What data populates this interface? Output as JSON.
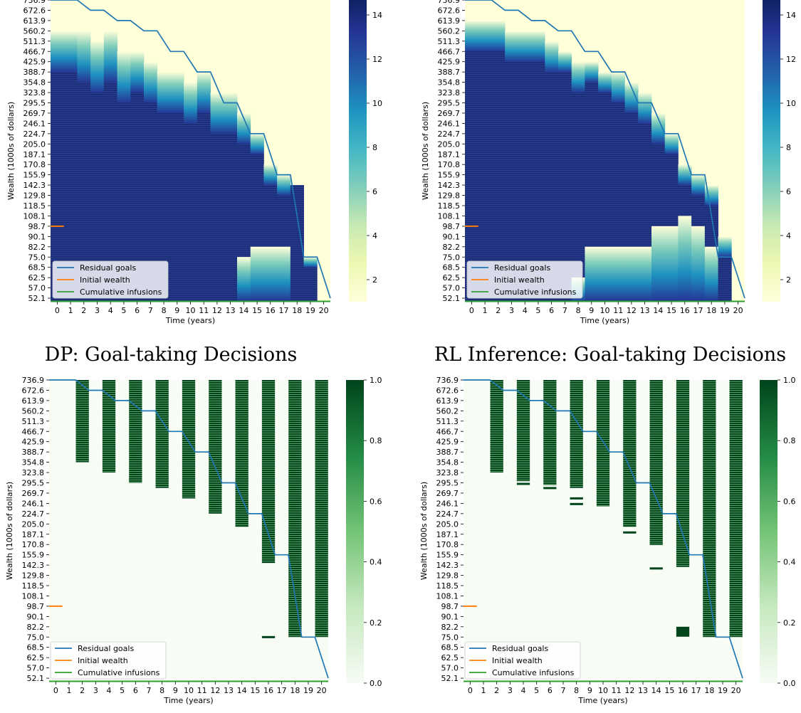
{
  "chart_data": [
    {
      "id": "dp-investment",
      "type": "heatmap",
      "title": "",
      "xlabel": "Time (years)",
      "ylabel": "Wealth (1000s of dollars)",
      "x_ticks": [
        "0",
        "1",
        "2",
        "3",
        "4",
        "5",
        "6",
        "7",
        "8",
        "9",
        "10",
        "11",
        "12",
        "13",
        "14",
        "15",
        "16",
        "17",
        "18",
        "19",
        "20"
      ],
      "y_ticks": [
        "736.9",
        "672.6",
        "613.9",
        "560.2",
        "511.3",
        "466.7",
        "425.9",
        "388.7",
        "354.8",
        "323.8",
        "295.5",
        "269.7",
        "246.1",
        "224.7",
        "205.0",
        "187.1",
        "170.8",
        "155.9",
        "142.3",
        "129.8",
        "118.5",
        "108.1",
        "98.7",
        "90.1",
        "82.2",
        "75.0",
        "68.5",
        "62.5",
        "57.0",
        "52.1"
      ],
      "colormap": "YlGnBu",
      "colorbar": {
        "min": 1,
        "max": 15,
        "ticks": [
          "2",
          "4",
          "6",
          "8",
          "10",
          "12",
          "14"
        ]
      },
      "dark_top_wealth": [
        388.7,
        388.7,
        354.8,
        323.8,
        354.8,
        295.5,
        323.8,
        295.5,
        269.7,
        269.7,
        246.1,
        269.7,
        224.7,
        224.7,
        205.0,
        187.1,
        142.3,
        129.8,
        142.3,
        68.5
      ],
      "fade_top_wealth": [
        560.2,
        560.2,
        560.2,
        511.3,
        560.2,
        466.7,
        466.7,
        425.9,
        388.7,
        388.7,
        354.8,
        388.7,
        323.8,
        323.8,
        269.7,
        224.7,
        170.8,
        155.9,
        142.3,
        75.0
      ],
      "lower_band_top_wealth": [
        null,
        null,
        null,
        null,
        null,
        null,
        null,
        null,
        null,
        null,
        null,
        null,
        null,
        null,
        75.0,
        82.2,
        82.2,
        82.2,
        null,
        null
      ],
      "residual_goals": [
        736.9,
        736.9,
        736.9,
        672.6,
        672.6,
        613.9,
        613.9,
        560.2,
        560.2,
        466.7,
        466.7,
        388.7,
        388.7,
        295.5,
        295.5,
        224.7,
        224.7,
        155.9,
        155.9,
        75.0,
        75.0,
        52.1
      ],
      "initial_wealth": 98.7,
      "cumulative_infusions": 52.1,
      "legend": [
        "Residual goals",
        "Initial wealth",
        "Cumulative infusions"
      ]
    },
    {
      "id": "rl-investment",
      "type": "heatmap",
      "title": "",
      "xlabel": "Time (years)",
      "ylabel": "Wealth (1000s of dollars)",
      "x_ticks": [
        "0",
        "1",
        "2",
        "3",
        "4",
        "5",
        "6",
        "7",
        "8",
        "9",
        "10",
        "11",
        "12",
        "13",
        "14",
        "15",
        "16",
        "17",
        "18",
        "19",
        "20"
      ],
      "y_ticks": [
        "736.9",
        "672.6",
        "613.9",
        "560.2",
        "511.3",
        "466.7",
        "425.9",
        "388.7",
        "354.8",
        "323.8",
        "295.5",
        "269.7",
        "246.1",
        "224.7",
        "205.0",
        "187.1",
        "170.8",
        "155.9",
        "142.3",
        "129.8",
        "118.5",
        "108.1",
        "98.7",
        "90.1",
        "82.2",
        "75.0",
        "68.5",
        "62.5",
        "57.0",
        "52.1"
      ],
      "colormap": "YlGnBu",
      "colorbar": {
        "min": 1,
        "max": 15,
        "ticks": [
          "2",
          "4",
          "6",
          "8",
          "10",
          "12",
          "14"
        ]
      },
      "dark_top_wealth": [
        466.7,
        466.7,
        466.7,
        425.9,
        425.9,
        425.9,
        388.7,
        388.7,
        323.8,
        354.8,
        323.8,
        295.5,
        269.7,
        246.1,
        205.0,
        187.1,
        142.3,
        129.8,
        118.5,
        75.0
      ],
      "fade_top_wealth": [
        613.9,
        613.9,
        613.9,
        560.2,
        560.2,
        560.2,
        511.3,
        466.7,
        425.9,
        425.9,
        388.7,
        388.7,
        354.8,
        323.8,
        269.7,
        224.7,
        170.8,
        155.9,
        142.3,
        90.1
      ],
      "lower_band_top_wealth": [
        null,
        null,
        null,
        null,
        null,
        null,
        null,
        null,
        62.5,
        82.2,
        82.2,
        82.2,
        82.2,
        82.2,
        98.7,
        98.7,
        108.1,
        98.7,
        82.2,
        null
      ],
      "residual_goals": [
        736.9,
        736.9,
        736.9,
        672.6,
        672.6,
        613.9,
        613.9,
        560.2,
        560.2,
        466.7,
        466.7,
        388.7,
        388.7,
        295.5,
        295.5,
        224.7,
        224.7,
        155.9,
        155.9,
        75.0,
        75.0,
        52.1
      ],
      "initial_wealth": 98.7,
      "cumulative_infusions": 52.1,
      "legend": [
        "Residual goals",
        "Initial wealth",
        "Cumulative infusions"
      ]
    },
    {
      "id": "dp-goal-taking",
      "type": "heatmap",
      "title": "DP: Goal-taking Decisions",
      "xlabel": "Time (years)",
      "ylabel": "Wealth (1000s of dollars)",
      "x_ticks": [
        "0",
        "1",
        "2",
        "3",
        "4",
        "5",
        "6",
        "7",
        "8",
        "9",
        "10",
        "11",
        "12",
        "13",
        "14",
        "15",
        "16",
        "17",
        "18",
        "19",
        "20"
      ],
      "y_ticks": [
        "736.9",
        "672.6",
        "613.9",
        "560.2",
        "511.3",
        "466.7",
        "425.9",
        "388.7",
        "354.8",
        "323.8",
        "295.5",
        "269.7",
        "246.1",
        "224.7",
        "205.0",
        "187.1",
        "170.8",
        "155.9",
        "142.3",
        "129.8",
        "118.5",
        "108.1",
        "98.7",
        "90.1",
        "82.2",
        "75.0",
        "68.5",
        "62.5",
        "57.0",
        "52.1"
      ],
      "colormap": "Greens",
      "colorbar": {
        "min": 0,
        "max": 1,
        "ticks": [
          "0.0",
          "0.2",
          "0.4",
          "0.6",
          "0.8",
          "1.0"
        ]
      },
      "goal_taken_min_wealth": {
        "2": 354.8,
        "4": 323.8,
        "6": 295.5,
        "8": 282.6,
        "10": 257.4,
        "12": 224.7,
        "14": 200.0,
        "16": 145.0,
        "18": 75.0,
        "20": 75.0
      },
      "extra_marks": [
        {
          "t": 16,
          "wealth": 75.7
        }
      ],
      "residual_goals": [
        736.9,
        736.9,
        736.9,
        672.6,
        672.6,
        613.9,
        613.9,
        560.2,
        560.2,
        466.7,
        466.7,
        388.7,
        388.7,
        295.5,
        295.5,
        224.7,
        224.7,
        155.9,
        155.9,
        75.0,
        75.0,
        52.1
      ],
      "initial_wealth": 98.7,
      "cumulative_infusions": 52.1,
      "legend": [
        "Residual goals",
        "Initial wealth",
        "Cumulative infusions"
      ]
    },
    {
      "id": "rl-goal-taking",
      "type": "heatmap",
      "title": "RL Inference: Goal-taking Decisions",
      "xlabel": "Time (years)",
      "ylabel": "Wealth (1000s of dollars)",
      "x_ticks": [
        "0",
        "1",
        "2",
        "3",
        "4",
        "5",
        "6",
        "7",
        "8",
        "9",
        "10",
        "11",
        "12",
        "13",
        "14",
        "15",
        "16",
        "17",
        "18",
        "19",
        "20"
      ],
      "y_ticks": [
        "736.9",
        "672.6",
        "613.9",
        "560.2",
        "511.3",
        "466.7",
        "425.9",
        "388.7",
        "354.8",
        "323.8",
        "295.5",
        "269.7",
        "246.1",
        "224.7",
        "205.0",
        "187.1",
        "170.8",
        "155.9",
        "142.3",
        "129.8",
        "118.5",
        "108.1",
        "98.7",
        "90.1",
        "82.2",
        "75.0",
        "68.5",
        "62.5",
        "57.0",
        "52.1"
      ],
      "colormap": "Greens",
      "colorbar": {
        "min": 0,
        "max": 1,
        "ticks": [
          "0.0",
          "0.2",
          "0.4",
          "0.6",
          "0.8",
          "1.0"
        ]
      },
      "goal_taken_min_wealth": {
        "2": 323.8,
        "4": 300.0,
        "6": 290.0,
        "8": 282.6,
        "10": 240.0,
        "12": 200.0,
        "14": 170.0,
        "16": 140.0,
        "18": 75.0,
        "20": 75.0
      },
      "extra_marks": [
        {
          "t": 4,
          "wealth": 295.5
        },
        {
          "t": 6,
          "wealth": 285.0
        },
        {
          "t": 8,
          "wealth": 260.0
        },
        {
          "t": 8,
          "wealth": 247.0
        },
        {
          "t": 12,
          "wealth": 192.0
        },
        {
          "t": 14,
          "wealth": 139.5
        },
        {
          "t": 16,
          "wealth": 82.2
        }
      ],
      "residual_goals": [
        736.9,
        736.9,
        736.9,
        672.6,
        672.6,
        613.9,
        613.9,
        560.2,
        560.2,
        466.7,
        466.7,
        388.7,
        388.7,
        295.5,
        295.5,
        224.7,
        224.7,
        155.9,
        155.9,
        75.0,
        75.0,
        52.1
      ],
      "initial_wealth": 98.7,
      "cumulative_infusions": 52.1,
      "legend": [
        "Residual goals",
        "Initial wealth",
        "Cumulative infusions"
      ]
    }
  ],
  "colors": {
    "residual_goals": "#1f77b4",
    "initial_wealth": "#ff7f0e",
    "cumulative_infusions": "#2ca02c"
  }
}
